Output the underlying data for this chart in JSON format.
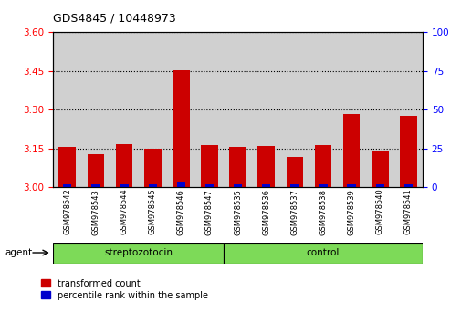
{
  "title": "GDS4845 / 10448973",
  "samples": [
    "GSM978542",
    "GSM978543",
    "GSM978544",
    "GSM978545",
    "GSM978546",
    "GSM978547",
    "GSM978535",
    "GSM978536",
    "GSM978537",
    "GSM978538",
    "GSM978539",
    "GSM978540",
    "GSM978541"
  ],
  "red_values": [
    3.157,
    3.128,
    3.168,
    3.15,
    3.453,
    3.162,
    3.157,
    3.159,
    3.118,
    3.165,
    3.285,
    3.142,
    3.278
  ],
  "blue_values": [
    2.0,
    2.0,
    2.0,
    2.0,
    3.0,
    2.0,
    2.0,
    2.0,
    2.0,
    2.0,
    2.0,
    2.0,
    2.0
  ],
  "groups": [
    {
      "label": "streptozotocin",
      "start": 0,
      "end": 6,
      "color": "#7dda58"
    },
    {
      "label": "control",
      "start": 6,
      "end": 13,
      "color": "#7dda58"
    }
  ],
  "group_label_prefix": "agent",
  "ylim_left": [
    3.0,
    3.6
  ],
  "ylim_right": [
    0,
    100
  ],
  "yticks_left": [
    3.0,
    3.15,
    3.3,
    3.45,
    3.6
  ],
  "yticks_right": [
    0,
    25,
    50,
    75,
    100
  ],
  "red_color": "#cc0000",
  "blue_color": "#0000cc",
  "bar_width": 0.6,
  "col_bg": "#d0d0d0",
  "plot_bg": "#ffffff",
  "legend_red": "transformed count",
  "legend_blue": "percentile rank within the sample"
}
